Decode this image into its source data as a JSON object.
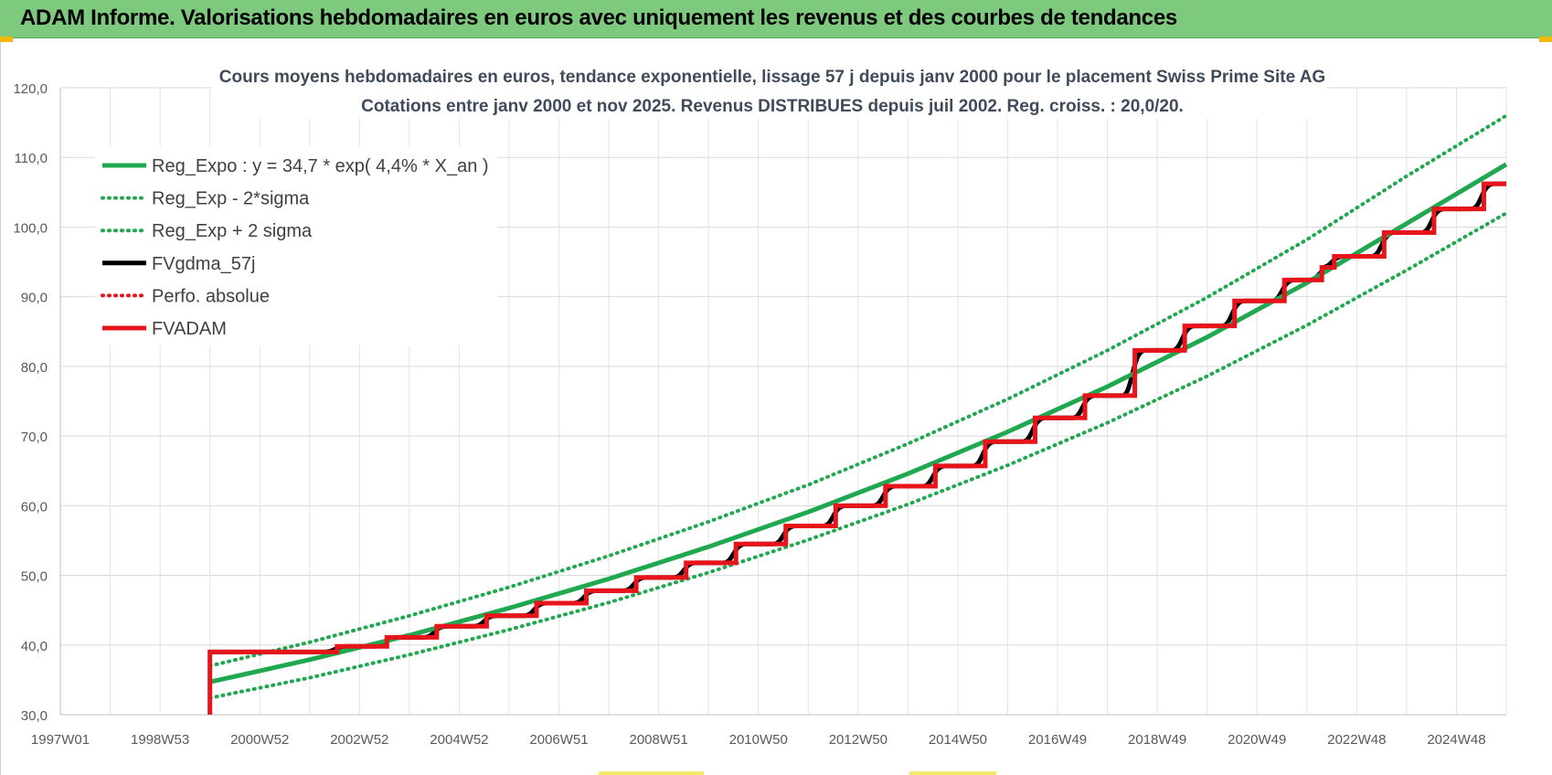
{
  "header": {
    "title": "ADAM Informe. Valorisations hebdomadaires en euros avec uniquement les revenus et des courbes de tendances"
  },
  "colors": {
    "header_bg": "#7dc97d",
    "green": "#1fa84f",
    "red": "#e8141b",
    "black": "#000000"
  },
  "chart_data": {
    "type": "line",
    "title_lines": [
      "Cours moyens hebdomadaires en euros, tendance exponentielle, lissage 57 j depuis janv 2000  pour le  placement Swiss Prime Site AG",
      "Cotations entre janv 2000 et nov 2025. Revenus DISTRIBUES depuis juil 2002. Reg. croiss. : 20,0/20."
    ],
    "x_ticks": [
      "1997W01",
      "1998W53",
      "2000W52",
      "2002W52",
      "2004W52",
      "2006W51",
      "2008W51",
      "2010W50",
      "2012W50",
      "2014W50",
      "2016W49",
      "2018W49",
      "2020W49",
      "2022W48",
      "2024W48"
    ],
    "x_tick_years": [
      1997,
      1999,
      2001,
      2003,
      2005,
      2007,
      2009,
      2011,
      2013,
      2015,
      2017,
      2019,
      2021,
      2023,
      2025
    ],
    "xlim": [
      1997,
      2026
    ],
    "ylim": [
      30,
      120
    ],
    "y_ticks": [
      "30,0",
      "40,0",
      "50,0",
      "60,0",
      "70,0",
      "80,0",
      "90,0",
      "100,0",
      "110,0",
      "120,0"
    ],
    "y_tick_values": [
      30,
      40,
      50,
      60,
      70,
      80,
      90,
      100,
      110,
      120
    ],
    "grid": true,
    "legend_position": "top-left",
    "legend": [
      {
        "label": "Reg_Expo : y = 34,7 * exp( 4,4% *  X_an )",
        "color": "#1fa84f",
        "style": "solid"
      },
      {
        "label": "Reg_Exp - 2*sigma",
        "color": "#1fa84f",
        "style": "dotted"
      },
      {
        "label": "Reg_Exp + 2 sigma",
        "color": "#1fa84f",
        "style": "dotted"
      },
      {
        "label": "FVgdma_57j",
        "color": "#000000",
        "style": "solid"
      },
      {
        "label": "Perfo. absolue",
        "color": "#e8141b",
        "style": "dotted"
      },
      {
        "label": "FVADAM",
        "color": "#e8141b",
        "style": "solid"
      }
    ],
    "series": [
      {
        "name": "Reg_Expo : y = 34,7 * exp( 4,4% *  X_an )",
        "x": [
          2000.0,
          2002.0,
          2004.0,
          2006.0,
          2008.0,
          2010.0,
          2012.0,
          2014.0,
          2016.0,
          2018.0,
          2020.0,
          2022.0,
          2024.0,
          2026.0
        ],
        "y": [
          34.7,
          37.9,
          41.4,
          45.3,
          49.5,
          54.1,
          59.1,
          64.6,
          70.6,
          77.1,
          84.2,
          92.0,
          100.5,
          109.0
        ]
      },
      {
        "name": "Reg_Exp - 2*sigma",
        "x": [
          2000.0,
          2002.0,
          2004.0,
          2006.0,
          2008.0,
          2010.0,
          2012.0,
          2014.0,
          2016.0,
          2018.0,
          2020.0,
          2022.0,
          2024.0,
          2026.0
        ],
        "y": [
          32.4,
          35.3,
          38.6,
          42.2,
          46.1,
          50.4,
          55.1,
          60.2,
          65.8,
          71.9,
          78.6,
          85.9,
          93.8,
          102.0
        ]
      },
      {
        "name": "Reg_Exp + 2 sigma",
        "x": [
          2000.0,
          2002.0,
          2004.0,
          2006.0,
          2008.0,
          2010.0,
          2012.0,
          2014.0,
          2016.0,
          2018.0,
          2020.0,
          2022.0,
          2024.0,
          2026.0
        ],
        "y": [
          37.0,
          40.4,
          44.2,
          48.3,
          52.8,
          57.7,
          63.0,
          68.9,
          75.3,
          82.3,
          89.9,
          98.2,
          107.3,
          116.0
        ]
      },
      {
        "name": "FVgdma_57j",
        "steps": [
          {
            "x": 2000.0,
            "y": 39.0
          },
          {
            "x": 2002.55,
            "y": 39.8
          },
          {
            "x": 2003.55,
            "y": 41.1
          },
          {
            "x": 2004.55,
            "y": 42.7
          },
          {
            "x": 2005.55,
            "y": 44.2
          },
          {
            "x": 2006.55,
            "y": 46.0
          },
          {
            "x": 2007.55,
            "y": 47.8
          },
          {
            "x": 2008.55,
            "y": 49.7
          },
          {
            "x": 2009.55,
            "y": 51.8
          },
          {
            "x": 2010.55,
            "y": 54.5
          },
          {
            "x": 2011.55,
            "y": 57.1
          },
          {
            "x": 2012.55,
            "y": 60.0
          },
          {
            "x": 2013.55,
            "y": 62.8
          },
          {
            "x": 2014.55,
            "y": 65.7
          },
          {
            "x": 2015.55,
            "y": 69.2
          },
          {
            "x": 2016.55,
            "y": 72.6
          },
          {
            "x": 2017.55,
            "y": 75.8
          },
          {
            "x": 2018.55,
            "y": 82.3
          },
          {
            "x": 2019.55,
            "y": 85.8
          },
          {
            "x": 2020.55,
            "y": 89.4
          },
          {
            "x": 2021.55,
            "y": 92.4
          },
          {
            "x": 2022.3,
            "y": 94.2
          },
          {
            "x": 2022.55,
            "y": 95.8
          },
          {
            "x": 2023.55,
            "y": 99.2
          },
          {
            "x": 2024.55,
            "y": 102.6
          },
          {
            "x": 2025.55,
            "y": 106.2
          }
        ],
        "x_end": 2026.0
      },
      {
        "name": "FVADAM",
        "steps": [
          {
            "x": 2000.0,
            "y": 39.0
          },
          {
            "x": 2002.55,
            "y": 39.8
          },
          {
            "x": 2003.55,
            "y": 41.1
          },
          {
            "x": 2004.55,
            "y": 42.7
          },
          {
            "x": 2005.55,
            "y": 44.2
          },
          {
            "x": 2006.55,
            "y": 46.0
          },
          {
            "x": 2007.55,
            "y": 47.8
          },
          {
            "x": 2008.55,
            "y": 49.7
          },
          {
            "x": 2009.55,
            "y": 51.8
          },
          {
            "x": 2010.55,
            "y": 54.5
          },
          {
            "x": 2011.55,
            "y": 57.1
          },
          {
            "x": 2012.55,
            "y": 60.0
          },
          {
            "x": 2013.55,
            "y": 62.8
          },
          {
            "x": 2014.55,
            "y": 65.7
          },
          {
            "x": 2015.55,
            "y": 69.2
          },
          {
            "x": 2016.55,
            "y": 72.6
          },
          {
            "x": 2017.55,
            "y": 75.8
          },
          {
            "x": 2018.55,
            "y": 82.3
          },
          {
            "x": 2019.55,
            "y": 85.8
          },
          {
            "x": 2020.55,
            "y": 89.4
          },
          {
            "x": 2021.55,
            "y": 92.4
          },
          {
            "x": 2022.3,
            "y": 94.2
          },
          {
            "x": 2022.55,
            "y": 95.8
          },
          {
            "x": 2023.55,
            "y": 99.2
          },
          {
            "x": 2024.55,
            "y": 102.6
          },
          {
            "x": 2025.55,
            "y": 106.2
          }
        ],
        "start_y": 30.0,
        "x_end": 2026.0
      }
    ]
  }
}
